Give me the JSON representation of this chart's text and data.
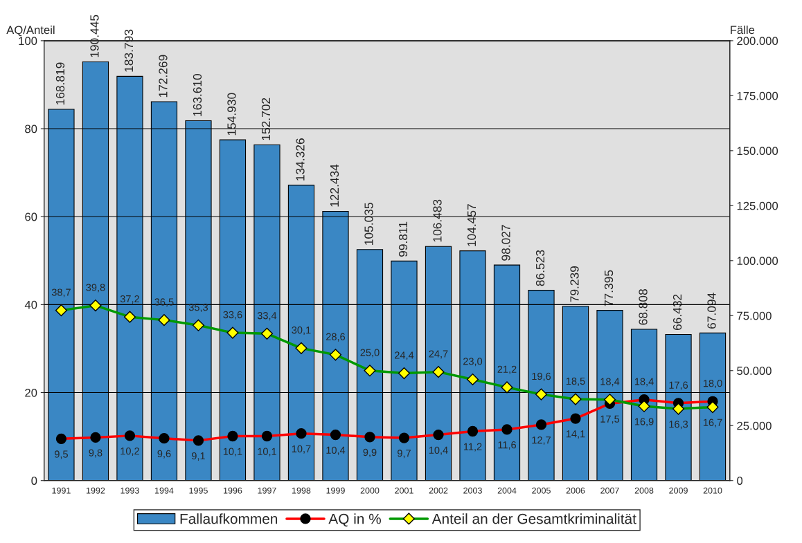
{
  "chart_data": {
    "type": "bar",
    "ylabel": "AQ/Anteil",
    "y2label": "Fälle",
    "categories": [
      "1991",
      "1992",
      "1993",
      "1994",
      "1995",
      "1996",
      "1997",
      "1998",
      "1999",
      "2000",
      "2001",
      "2002",
      "2003",
      "2004",
      "2005",
      "2006",
      "2007",
      "2008",
      "2009",
      "2010"
    ],
    "series": [
      {
        "name": "Fallaufkommen",
        "axis": "y2",
        "color": "#3a87c4",
        "values": [
          168819,
          190445,
          183793,
          172269,
          163610,
          154930,
          152702,
          134326,
          122434,
          105035,
          99811,
          106483,
          104457,
          98027,
          86523,
          79239,
          77395,
          68808,
          66432,
          67094
        ],
        "value_labels": [
          "168.819",
          "190.445",
          "183.793",
          "172.269",
          "163.610",
          "154.930",
          "152.702",
          "134.326",
          "122.434",
          "105.035",
          "99.811",
          "106.483",
          "104.457",
          "98.027",
          "86.523",
          "79.239",
          "77.395",
          "68.808",
          "66.432",
          "67.094"
        ]
      },
      {
        "name": "AQ in %",
        "type": "line",
        "color": "#ff0000",
        "marker": "circle",
        "values": [
          9.5,
          9.8,
          10.2,
          9.6,
          9.1,
          10.1,
          10.1,
          10.7,
          10.4,
          9.9,
          9.7,
          10.4,
          11.2,
          11.6,
          12.7,
          14.1,
          17.5,
          18.4,
          17.6,
          18.0
        ],
        "value_labels": [
          "9,5",
          "9,8",
          "10,2",
          "9,6",
          "9,1",
          "10,1",
          "10,1",
          "10,7",
          "10,4",
          "9,9",
          "9,7",
          "10,4",
          "11,2",
          "11,6",
          "12,7",
          "14,1",
          "17,5",
          "18,4",
          "17,6",
          "18,0"
        ]
      },
      {
        "name": "Anteil an der Gesamtkriminalität",
        "type": "line",
        "color": "#009900",
        "marker": "diamond",
        "values": [
          38.7,
          39.8,
          37.2,
          36.5,
          35.3,
          33.6,
          33.4,
          30.1,
          28.6,
          25.0,
          24.4,
          24.7,
          23.0,
          21.2,
          19.6,
          18.5,
          18.4,
          16.9,
          16.3,
          16.7
        ],
        "value_labels": [
          "38,7",
          "39,8",
          "37,2",
          "36,5",
          "35,3",
          "33,6",
          "33,4",
          "30,1",
          "28,6",
          "25,0",
          "24,4",
          "24,7",
          "23,0",
          "21,2",
          "19,6",
          "18,5",
          "18,4",
          "16,9",
          "16,3",
          "16,7"
        ]
      }
    ],
    "ylim": [
      0,
      100
    ],
    "yticks": [
      0,
      20,
      40,
      60,
      80,
      100
    ],
    "y2lim": [
      0,
      200000
    ],
    "y2ticks": [
      0,
      {
        "value": 25000,
        "label": "25.000"
      },
      {
        "value": 50000,
        "label": "50.000"
      },
      {
        "value": 75000,
        "label": "75.000"
      },
      {
        "value": 100000,
        "label": "100.000"
      },
      {
        "value": 125000,
        "label": "125.000"
      },
      {
        "value": 150000,
        "label": "150.000"
      },
      {
        "value": 175000,
        "label": "175.000"
      },
      {
        "value": 200000,
        "label": "200.000"
      }
    ],
    "grid": "y",
    "legend": "bottom"
  }
}
